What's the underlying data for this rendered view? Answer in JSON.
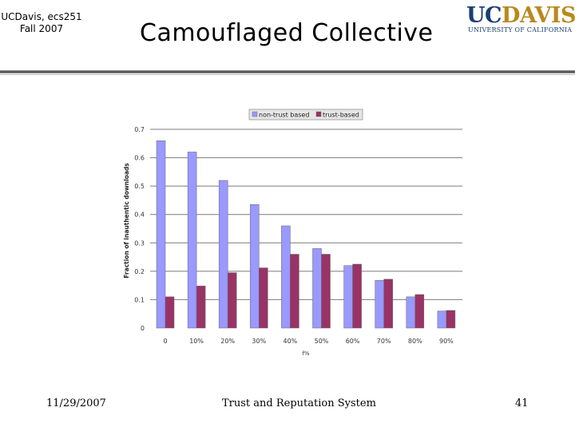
{
  "header": {
    "course_line1": "UCDavis, ecs251",
    "course_line2": "Fall 2007",
    "title": "Camouflaged Collective",
    "logo_main_uc": "UC",
    "logo_main_davis": "DAVIS",
    "logo_sub": "UNIVERSITY OF CALIFORNIA"
  },
  "footer": {
    "date": "11/29/2007",
    "center": "Trust and Reputation System",
    "page": "41"
  },
  "colors": {
    "non_trust": "#9999ff",
    "trust": "#993366",
    "logo_blue": "#1a3f73",
    "logo_gold": "#b8891e"
  },
  "chart_data": {
    "type": "bar",
    "title": "",
    "xlabel": "f%",
    "ylabel": "Fraction of inauthentic downloads",
    "ylim": [
      0,
      0.7
    ],
    "yticks": [
      "0",
      "0.1",
      "0.2",
      "0.3",
      "0.4",
      "0.5",
      "0.6",
      "0.7"
    ],
    "grid": true,
    "legend_position": "top",
    "categories": [
      "0",
      "10%",
      "20%",
      "30%",
      "40%",
      "50%",
      "60%",
      "70%",
      "80%",
      "90%"
    ],
    "series": [
      {
        "name": "non-trust based",
        "values": [
          0.66,
          0.62,
          0.52,
          0.435,
          0.36,
          0.28,
          0.22,
          0.168,
          0.11,
          0.06
        ]
      },
      {
        "name": "trust-based",
        "values": [
          0.11,
          0.148,
          0.195,
          0.212,
          0.26,
          0.26,
          0.225,
          0.172,
          0.118,
          0.062
        ]
      }
    ]
  }
}
